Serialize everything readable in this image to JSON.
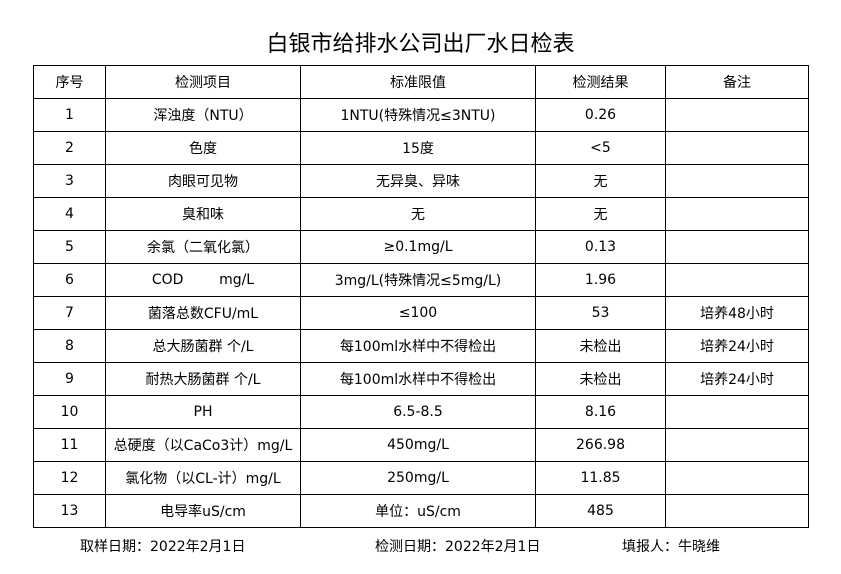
{
  "header": {
    "title": "白银市给排水公司出厂水日检表"
  },
  "table": {
    "columns": [
      "序号",
      "检测项目",
      "标准限值",
      "检测结果",
      "备注"
    ],
    "rows": [
      {
        "no": "1",
        "item": "浑浊度（NTU）",
        "standard": "1NTU(特殊情况≤3NTU)",
        "result": "0.26"
      },
      {
        "no": "2",
        "item": "色度",
        "standard": "15度",
        "result": "<5"
      },
      {
        "no": "3",
        "item": "肉眼可见物",
        "standard": "无异臭、异味",
        "result": "无"
      },
      {
        "no": "4",
        "item": "臭和味",
        "standard": "无",
        "result": "无"
      },
      {
        "no": "5",
        "item": "余氯（二氧化氯）",
        "standard": "≥0.1mg/L",
        "result": "0.13"
      },
      {
        "no": "6",
        "item": "COD        mg/L",
        "standard": "3mg/L(特殊情况≤5mg/L)",
        "result": "1.96"
      },
      {
        "no": "7",
        "item": "菌落总数CFU/mL",
        "standard": "≤100",
        "result": "53",
        "remark": "培养48小时"
      },
      {
        "no": "8",
        "item": "总大肠菌群 个/L",
        "standard": "每100ml水样中不得检出",
        "result": "未检出",
        "remark": "培养24小时"
      },
      {
        "no": "9",
        "item": "耐热大肠菌群 个/L",
        "standard": "每100ml水样中不得检出",
        "result": "未检出",
        "remark": "培养24小时"
      },
      {
        "no": "10",
        "item": "PH",
        "standard": "6.5-8.5",
        "result": "8.16"
      },
      {
        "no": "11",
        "item": "总硬度（以CaCo3计）mg/L",
        "standard": "450mg/L",
        "result": "266.98"
      },
      {
        "no": "12",
        "item": "氯化物（以CL-计）mg/L",
        "standard": "250mg/L",
        "result": "11.85"
      },
      {
        "no": "13",
        "item": "电导率uS/cm",
        "standard": "单位：uS/cm",
        "result": "485"
      }
    ]
  },
  "footer": {
    "sampling_date": "取样日期：2022年2月1日",
    "testing_date": "检测日期：2022年2月1日",
    "reporter": "填报人：牛晓维"
  }
}
